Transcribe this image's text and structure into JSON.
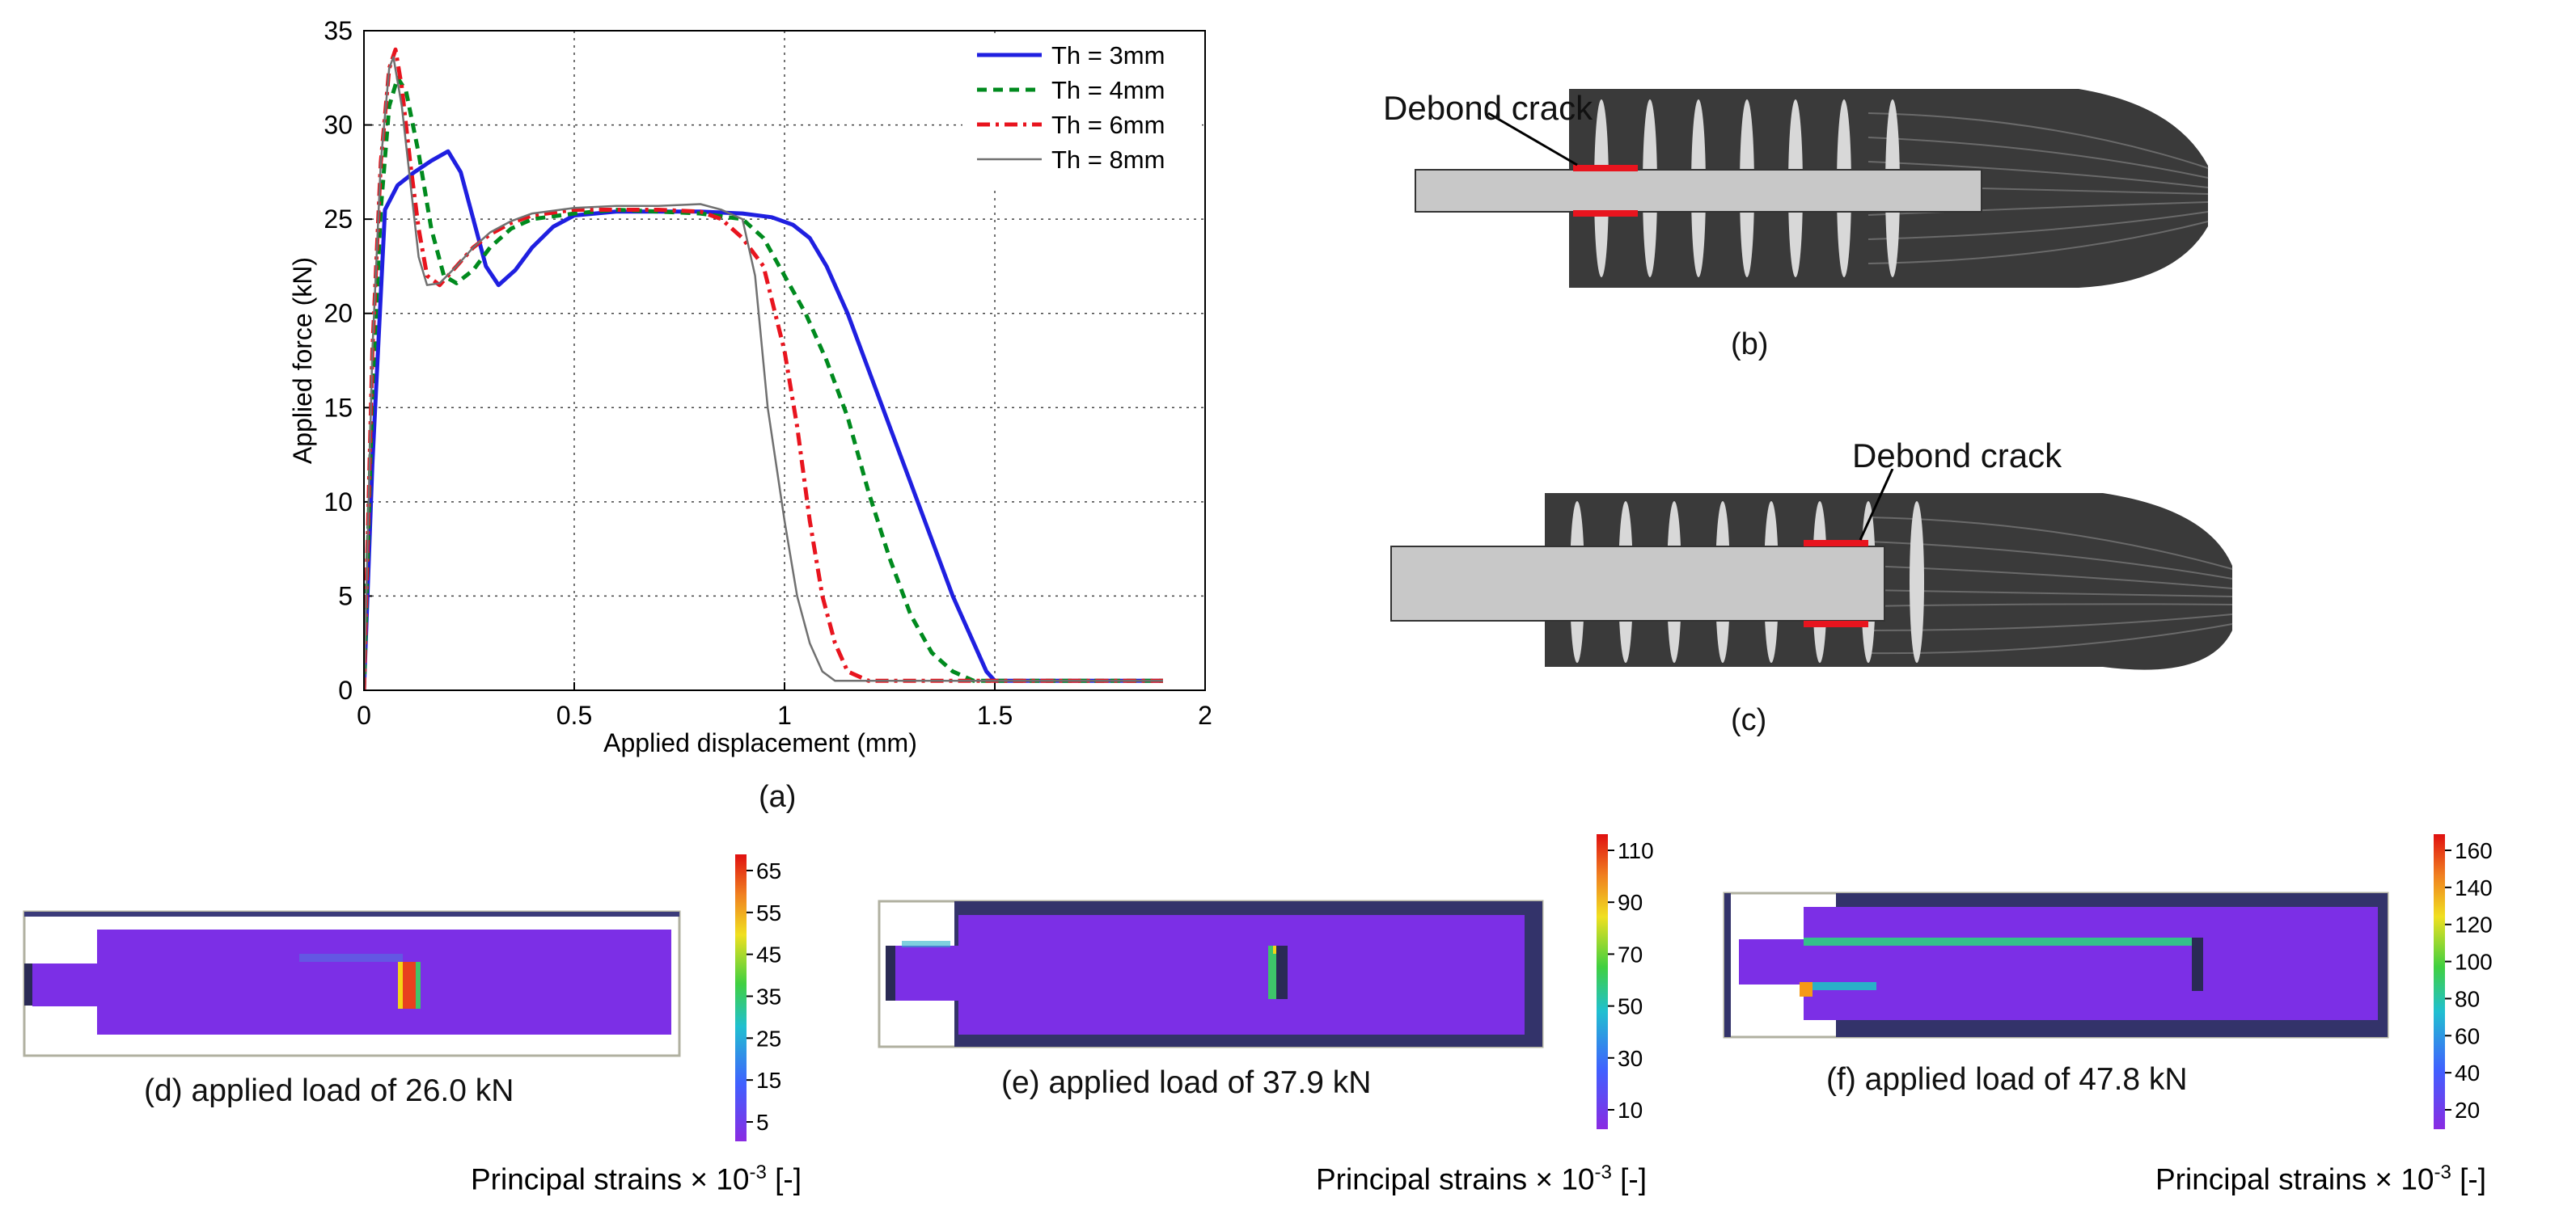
{
  "chart_data": {
    "type": "line",
    "title": "",
    "xlabel": "Applied displacement (mm)",
    "ylabel": "Applied force (kN)",
    "xlim": [
      0,
      2
    ],
    "ylim": [
      0,
      35
    ],
    "xticks": [
      "0",
      "0.5",
      "1",
      "1.5",
      "2"
    ],
    "yticks": [
      "0",
      "5",
      "10",
      "15",
      "20",
      "25",
      "30",
      "35"
    ],
    "grid": true,
    "legend_position": "top-right",
    "series": [
      {
        "name": "Th = 3mm",
        "color": "#1f1fe0",
        "dash": "solid",
        "x": [
          0,
          0.02,
          0.05,
          0.08,
          0.12,
          0.16,
          0.2,
          0.23,
          0.26,
          0.29,
          0.32,
          0.36,
          0.4,
          0.45,
          0.5,
          0.6,
          0.7,
          0.8,
          0.9,
          0.97,
          1.02,
          1.06,
          1.1,
          1.15,
          1.2,
          1.25,
          1.3,
          1.35,
          1.4,
          1.45,
          1.48,
          1.5,
          1.55,
          1.6,
          1.7,
          1.8,
          1.9
        ],
        "y": [
          0,
          12,
          25.5,
          26.8,
          27.5,
          28.1,
          28.6,
          27.5,
          25,
          22.5,
          21.5,
          22.3,
          23.5,
          24.6,
          25.2,
          25.4,
          25.4,
          25.4,
          25.3,
          25.1,
          24.7,
          24,
          22.5,
          20,
          17,
          14,
          11,
          8,
          5,
          2.5,
          1,
          0.5,
          0.5,
          0.5,
          0.5,
          0.5,
          0.5
        ]
      },
      {
        "name": "Th = 4mm",
        "color": "#008a1e",
        "dash": "12,8",
        "x": [
          0,
          0.02,
          0.04,
          0.06,
          0.08,
          0.1,
          0.13,
          0.16,
          0.19,
          0.22,
          0.26,
          0.3,
          0.35,
          0.4,
          0.5,
          0.6,
          0.7,
          0.8,
          0.9,
          0.95,
          1,
          1.05,
          1.1,
          1.15,
          1.2,
          1.25,
          1.3,
          1.35,
          1.4,
          1.45,
          1.5,
          1.6,
          1.7,
          1.8,
          1.9
        ],
        "y": [
          0,
          16,
          25.5,
          31,
          32.5,
          31.8,
          28.5,
          24.5,
          22,
          21.6,
          22.3,
          23.5,
          24.5,
          25,
          25.3,
          25.5,
          25.4,
          25.3,
          25,
          24,
          22,
          20,
          17.5,
          14.5,
          10.5,
          7,
          4,
          2,
          1,
          0.5,
          0.5,
          0.5,
          0.5,
          0.5,
          0.5
        ]
      },
      {
        "name": "Th = 6mm",
        "color": "#e8141e",
        "dash": "16,7,4,7",
        "x": [
          0,
          0.02,
          0.04,
          0.06,
          0.075,
          0.09,
          0.11,
          0.13,
          0.15,
          0.18,
          0.22,
          0.26,
          0.3,
          0.35,
          0.4,
          0.5,
          0.6,
          0.7,
          0.8,
          0.85,
          0.9,
          0.95,
          1,
          1.03,
          1.06,
          1.09,
          1.12,
          1.15,
          1.2,
          1.25,
          1.3,
          1.5,
          1.7,
          1.9
        ],
        "y": [
          0,
          18,
          28,
          33,
          34,
          32,
          28,
          24.5,
          22,
          21.5,
          22.5,
          23.5,
          24.2,
          24.8,
          25.2,
          25.5,
          25.5,
          25.5,
          25.4,
          25,
          24,
          22.5,
          18,
          14,
          9,
          5,
          2.5,
          1,
          0.5,
          0.5,
          0.5,
          0.5,
          0.5,
          0.5
        ]
      },
      {
        "name": "Th = 8mm",
        "color": "#707070",
        "dash": "solid",
        "x": [
          0,
          0.02,
          0.04,
          0.06,
          0.07,
          0.09,
          0.11,
          0.13,
          0.15,
          0.18,
          0.22,
          0.26,
          0.3,
          0.35,
          0.4,
          0.5,
          0.6,
          0.7,
          0.8,
          0.85,
          0.9,
          0.93,
          0.96,
          1,
          1.03,
          1.06,
          1.09,
          1.12,
          1.15,
          1.2,
          1.3,
          1.5,
          1.7,
          1.9
        ],
        "y": [
          0,
          18,
          28,
          33,
          33.6,
          31,
          27,
          23,
          21.5,
          21.6,
          22.5,
          23.5,
          24.3,
          24.9,
          25.3,
          25.6,
          25.7,
          25.7,
          25.8,
          25.5,
          25,
          22,
          15,
          9,
          5,
          2.5,
          1,
          0.5,
          0.5,
          0.5,
          0.5,
          0.5,
          0.5,
          0.5
        ]
      }
    ]
  },
  "captions": {
    "a": "(a)",
    "b": "(b)",
    "c": "(c)",
    "d": "(d) applied load of 26.0 kN",
    "e": "(e) applied load of 37.9 kN",
    "f": "(f) applied load of 47.8 kN"
  },
  "annotations": {
    "debond_b": "Debond crack",
    "debond_c": "Debond crack"
  },
  "strain_label": {
    "text": "Principal strains × 10",
    "exp": "-3",
    "unit": " [-]"
  },
  "colorbars": {
    "d": [
      "65",
      "55",
      "45",
      "35",
      "25",
      "15",
      "5"
    ],
    "e": [
      "110",
      "90",
      "70",
      "50",
      "30",
      "10"
    ],
    "f": [
      "160",
      "140",
      "120",
      "100",
      "80",
      "60",
      "40",
      "20"
    ]
  },
  "colors": {
    "fiber": "#3a3a3a",
    "insert": "#c8c8c8",
    "crack": "#e8141e",
    "strain_field": "#7c2fe6",
    "frame": "#33336a"
  }
}
